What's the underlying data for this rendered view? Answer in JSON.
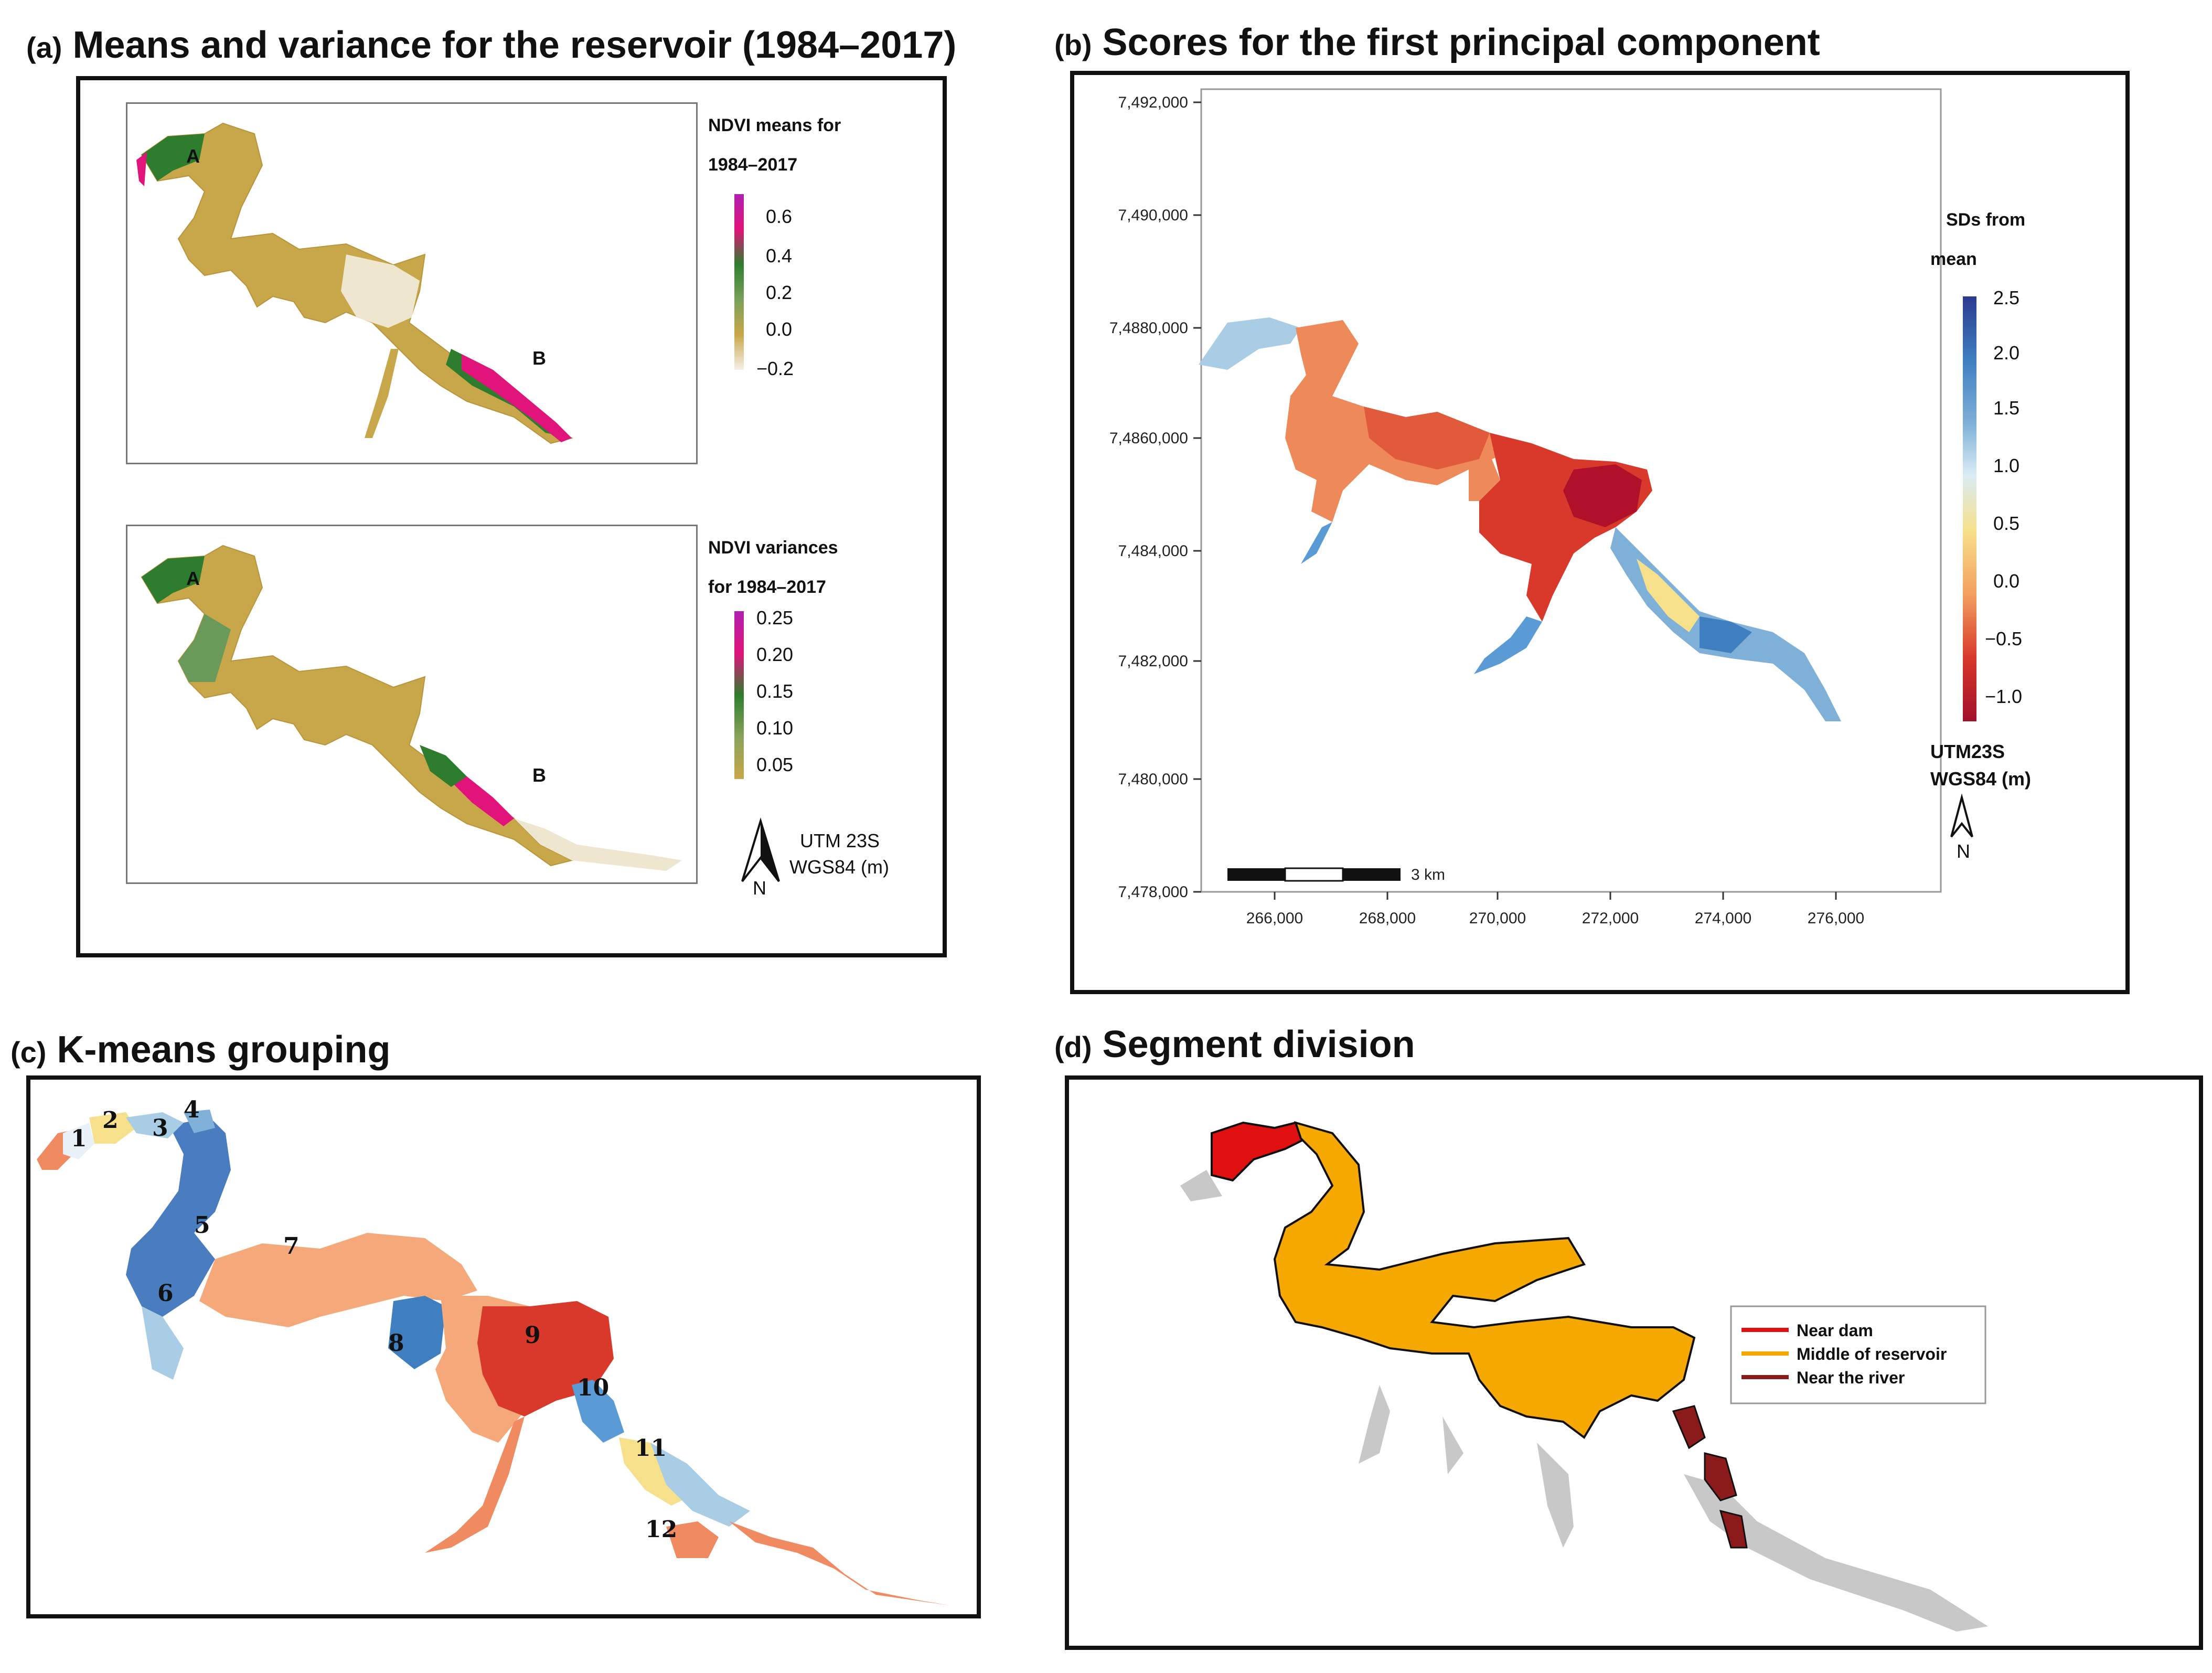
{
  "panel_a": {
    "letter": "(a)",
    "title": "Means and variance for the reservoir (1984–2017)",
    "means_map": {
      "legend_title_line1": "NDVI means for",
      "legend_title_line2": "1984–2017",
      "legend_ticks": [
        "0.6",
        "0.4",
        "0.2",
        "0.0",
        "−0.2"
      ],
      "point_a": "A",
      "point_b": "B",
      "colors": [
        "#b01fb0",
        "#e0147a",
        "#2e7d2e",
        "#c6a43a",
        "#f5f0e8"
      ]
    },
    "variance_map": {
      "legend_title_line1": "NDVI variances",
      "legend_title_line2": "for 1984–2017",
      "legend_ticks": [
        "0.25",
        "0.20",
        "0.15",
        "0.10",
        "0.05"
      ],
      "point_a": "A",
      "point_b": "B"
    },
    "crs_line1": "UTM 23S",
    "crs_line2": "WGS84 (m)",
    "north": "N"
  },
  "panel_b": {
    "letter": "(b)",
    "title": "Scores for the first principal component",
    "y_ticks": [
      "7,492,000",
      "7,490,000",
      "7,4880,000",
      "7,4860,000",
      "7,484,000",
      "7,482,000",
      "7,480,000",
      "7,478,000"
    ],
    "x_ticks": [
      "266,000",
      "268,000",
      "270,000",
      "272,000",
      "274,000",
      "276,000"
    ],
    "legend_title_line1": "SDs from",
    "legend_title_line2": "mean",
    "legend_ticks": [
      "2.5",
      "2.0",
      "1.5",
      "1.0",
      "0.5",
      "0.0",
      "−0.5",
      "−1.0"
    ],
    "scale_label": "3 km",
    "crs_line1": "UTM23S",
    "crs_line2": "WGS84 (m)",
    "north": "N"
  },
  "panel_c": {
    "letter": "(c)",
    "title": "K-means grouping",
    "groups": [
      "1",
      "2",
      "3",
      "4",
      "5",
      "6",
      "7",
      "8",
      "9",
      "10",
      "11",
      "12"
    ]
  },
  "panel_d": {
    "letter": "(d)",
    "title": "Segment division",
    "legend": [
      {
        "label": "Near dam",
        "color": "#e01010"
      },
      {
        "label": "Middle of reservoir",
        "color": "#f5a800"
      },
      {
        "label": "Near the river",
        "color": "#8b1a1a"
      }
    ]
  }
}
